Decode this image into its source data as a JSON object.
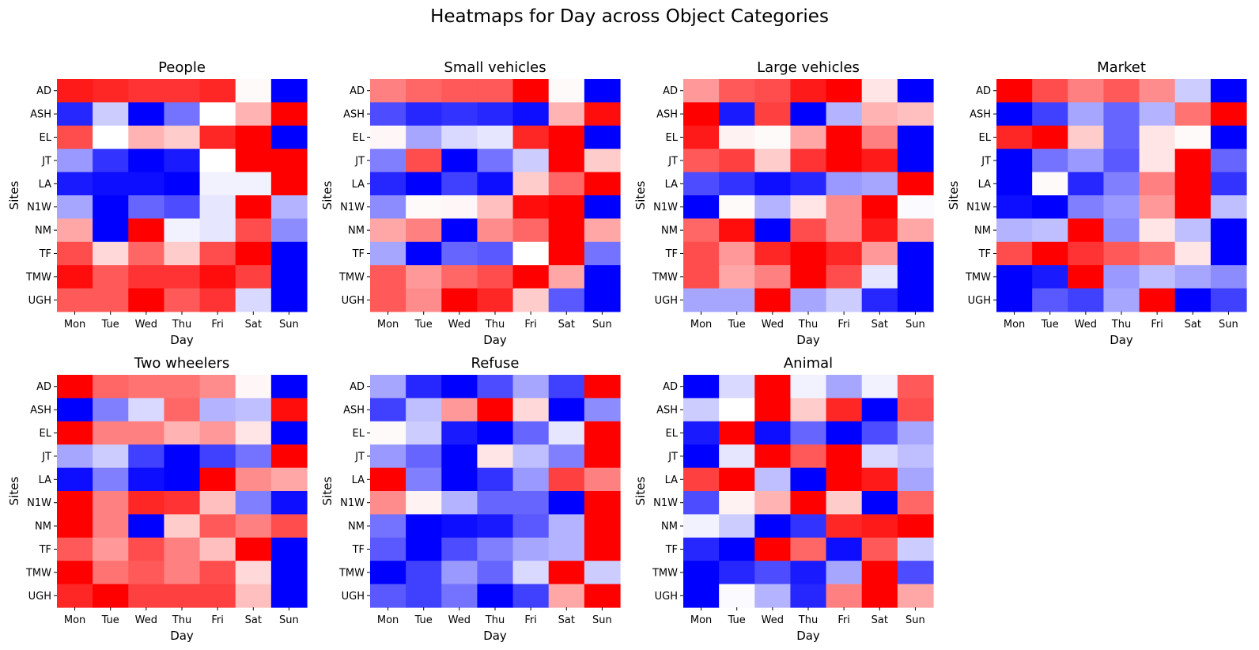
{
  "suptitle": "Heatmaps for Day across Object Categories",
  "chart_data": [
    {
      "type": "heatmap",
      "title": "People",
      "xlabel": "Day",
      "ylabel": "Sites",
      "x": [
        "Mon",
        "Tue",
        "Wed",
        "Thu",
        "Fri",
        "Sat",
        "Sun"
      ],
      "y": [
        "AD",
        "ASH",
        "EL",
        "JT",
        "LA",
        "N1W",
        "NM",
        "TF",
        "TMW",
        "UGH"
      ],
      "values": [
        [
          0.9,
          0.85,
          0.8,
          0.8,
          0.85,
          0.02,
          -1
        ],
        [
          -0.85,
          -0.2,
          -1,
          -0.55,
          0,
          0.3,
          1
        ],
        [
          0.7,
          0,
          0.3,
          0.2,
          0.85,
          1,
          -1
        ],
        [
          -0.4,
          -0.8,
          -1,
          -0.9,
          0,
          1,
          1
        ],
        [
          -0.9,
          -0.95,
          -0.95,
          -1,
          -0.05,
          -0.05,
          1
        ],
        [
          -0.35,
          -1,
          -0.6,
          -0.7,
          -0.1,
          1,
          -0.3
        ],
        [
          0.35,
          -1,
          1,
          -0.05,
          -0.1,
          0.7,
          -0.45
        ],
        [
          0.7,
          0.15,
          0.6,
          0.2,
          0.7,
          1,
          -1
        ],
        [
          0.95,
          0.65,
          0.8,
          0.8,
          0.95,
          0.75,
          -1
        ],
        [
          0.65,
          0.65,
          1,
          0.65,
          0.8,
          -0.15,
          -1
        ]
      ],
      "color_range": [
        -1,
        1
      ],
      "colors": {
        "low": "#0000ff",
        "mid": "#ffffff",
        "high": "#ff0000"
      }
    },
    {
      "type": "heatmap",
      "title": "Small vehicles",
      "xlabel": "Day",
      "ylabel": "Sites",
      "x": [
        "Mon",
        "Tue",
        "Wed",
        "Thu",
        "Fri",
        "Sat",
        "Sun"
      ],
      "y": [
        "AD",
        "ASH",
        "EL",
        "JT",
        "LA",
        "N1W",
        "NM",
        "TF",
        "TMW",
        "UGH"
      ],
      "values": [
        [
          0.5,
          0.6,
          0.65,
          0.65,
          1,
          0.02,
          -1
        ],
        [
          -0.7,
          -0.85,
          -0.8,
          -0.85,
          -0.95,
          0.3,
          0.95
        ],
        [
          0.03,
          -0.35,
          -0.15,
          -0.1,
          0.85,
          1,
          -1
        ],
        [
          -0.5,
          0.7,
          -1,
          -0.55,
          -0.2,
          1,
          0.2
        ],
        [
          -0.85,
          -1,
          -0.75,
          -0.95,
          0.2,
          0.6,
          1
        ],
        [
          -0.45,
          0.02,
          0.03,
          0.25,
          0.95,
          1,
          -1
        ],
        [
          0.35,
          0.5,
          -1,
          0.45,
          0.6,
          1,
          0.35
        ],
        [
          -0.35,
          -1,
          -0.6,
          -0.65,
          0,
          1,
          -0.55
        ],
        [
          0.65,
          0.4,
          0.6,
          0.7,
          1,
          0.35,
          -1
        ],
        [
          0.65,
          0.45,
          1,
          0.85,
          0.2,
          -0.65,
          -1
        ]
      ],
      "color_range": [
        -1,
        1
      ],
      "colors": {
        "low": "#0000ff",
        "mid": "#ffffff",
        "high": "#ff0000"
      }
    },
    {
      "type": "heatmap",
      "title": "Large vehicles",
      "xlabel": "Day",
      "ylabel": "Sites",
      "x": [
        "Mon",
        "Tue",
        "Wed",
        "Thu",
        "Fri",
        "Sat",
        "Sun"
      ],
      "y": [
        "AD",
        "ASH",
        "EL",
        "JT",
        "LA",
        "N1W",
        "NM",
        "TF",
        "TMW",
        "UGH"
      ],
      "values": [
        [
          0.4,
          0.65,
          0.7,
          0.9,
          1,
          0.1,
          -1
        ],
        [
          1,
          -0.9,
          0.75,
          -1,
          -0.3,
          0.3,
          0.25
        ],
        [
          0.9,
          0.05,
          0.02,
          0.35,
          1,
          0.5,
          -1
        ],
        [
          0.65,
          0.75,
          0.2,
          0.8,
          1,
          0.9,
          -1
        ],
        [
          -0.7,
          -0.8,
          -0.95,
          -0.85,
          -0.4,
          -0.35,
          1
        ],
        [
          -1,
          0.02,
          -0.3,
          0.1,
          0.45,
          1,
          -0.02
        ],
        [
          0.6,
          0.95,
          -1,
          0.7,
          0.45,
          0.9,
          0.35
        ],
        [
          0.7,
          0.4,
          0.85,
          1,
          0.85,
          0.4,
          -1
        ],
        [
          0.7,
          0.35,
          0.5,
          1,
          0.7,
          -0.1,
          -1
        ],
        [
          -0.35,
          -0.35,
          1,
          -0.35,
          -0.2,
          -0.85,
          -1
        ]
      ],
      "color_range": [
        -1,
        1
      ],
      "colors": {
        "low": "#0000ff",
        "mid": "#ffffff",
        "high": "#ff0000"
      }
    },
    {
      "type": "heatmap",
      "title": "Market",
      "xlabel": "Day",
      "ylabel": "Sites",
      "x": [
        "Mon",
        "Tue",
        "Wed",
        "Thu",
        "Fri",
        "Sat",
        "Sun"
      ],
      "y": [
        "AD",
        "ASH",
        "EL",
        "JT",
        "LA",
        "N1W",
        "NM",
        "TF",
        "TMW",
        "UGH"
      ],
      "values": [
        [
          1,
          0.7,
          0.5,
          0.65,
          0.45,
          -0.2,
          -1
        ],
        [
          -1,
          -0.75,
          -0.35,
          -0.6,
          -0.3,
          0.55,
          1
        ],
        [
          0.85,
          1,
          0.2,
          -0.6,
          0.1,
          0.02,
          -1
        ],
        [
          -1,
          -0.55,
          -0.4,
          -0.65,
          0.1,
          1,
          -0.6
        ],
        [
          -1,
          0.02,
          -0.85,
          -0.5,
          0.5,
          1,
          -0.8
        ],
        [
          -0.95,
          -1,
          -0.5,
          -0.4,
          0.4,
          1,
          -0.25
        ],
        [
          -0.3,
          -0.25,
          1,
          -0.45,
          0.1,
          -0.25,
          -1
        ],
        [
          0.7,
          1,
          0.8,
          0.65,
          0.55,
          0.1,
          -1
        ],
        [
          -1,
          -0.9,
          1,
          -0.4,
          -0.25,
          -0.35,
          -0.45
        ],
        [
          -1,
          -0.65,
          -0.75,
          -0.35,
          1,
          -1,
          -0.75
        ]
      ],
      "color_range": [
        -1,
        1
      ],
      "colors": {
        "low": "#0000ff",
        "mid": "#ffffff",
        "high": "#ff0000"
      }
    },
    {
      "type": "heatmap",
      "title": "Two wheelers",
      "xlabel": "Day",
      "ylabel": "Sites",
      "x": [
        "Mon",
        "Tue",
        "Wed",
        "Thu",
        "Fri",
        "Sat",
        "Sun"
      ],
      "y": [
        "AD",
        "ASH",
        "EL",
        "JT",
        "LA",
        "N1W",
        "NM",
        "TF",
        "TMW",
        "UGH"
      ],
      "values": [
        [
          1,
          0.6,
          0.55,
          0.55,
          0.45,
          0.03,
          -1
        ],
        [
          -1,
          -0.5,
          -0.15,
          0.6,
          -0.3,
          -0.25,
          0.95
        ],
        [
          1,
          0.5,
          0.5,
          0.3,
          0.4,
          0.1,
          -1
        ],
        [
          -0.35,
          -0.2,
          -0.75,
          -1,
          -0.75,
          -0.55,
          1
        ],
        [
          -0.95,
          -0.5,
          -0.95,
          -1,
          1,
          0.45,
          0.35
        ],
        [
          1,
          0.5,
          0.85,
          0.8,
          0.25,
          -0.5,
          -0.95
        ],
        [
          1,
          0.5,
          -1,
          0.2,
          0.65,
          0.5,
          0.7
        ],
        [
          0.65,
          0.4,
          0.7,
          0.5,
          0.25,
          1,
          -1
        ],
        [
          1,
          0.55,
          0.65,
          0.5,
          0.7,
          0.15,
          -1
        ],
        [
          0.85,
          1,
          0.75,
          0.75,
          0.75,
          0.25,
          -1
        ]
      ],
      "color_range": [
        -1,
        1
      ],
      "colors": {
        "low": "#0000ff",
        "mid": "#ffffff",
        "high": "#ff0000"
      }
    },
    {
      "type": "heatmap",
      "title": "Refuse",
      "xlabel": "Day",
      "ylabel": "Sites",
      "x": [
        "Mon",
        "Tue",
        "Wed",
        "Thu",
        "Fri",
        "Sat",
        "Sun"
      ],
      "y": [
        "AD",
        "ASH",
        "EL",
        "JT",
        "LA",
        "N1W",
        "NM",
        "TF",
        "TMW",
        "UGH"
      ],
      "values": [
        [
          -0.35,
          -0.85,
          -1,
          -0.7,
          -0.35,
          -0.75,
          1
        ],
        [
          -0.75,
          -0.25,
          0.4,
          1,
          0.15,
          -1,
          -0.45
        ],
        [
          0.02,
          -0.2,
          -0.9,
          -1,
          -0.6,
          -0.1,
          1
        ],
        [
          -0.4,
          -0.6,
          -1,
          0.1,
          -0.25,
          -0.5,
          1
        ],
        [
          1,
          -0.5,
          -1,
          -0.8,
          -0.4,
          0.75,
          0.5
        ],
        [
          0.45,
          0.05,
          -0.3,
          -0.6,
          -0.6,
          -1,
          1
        ],
        [
          -0.55,
          -1,
          -0.95,
          -0.9,
          -0.65,
          -0.3,
          1
        ],
        [
          -0.65,
          -1,
          -0.7,
          -0.5,
          -0.35,
          -0.3,
          1
        ],
        [
          -1,
          -0.75,
          -0.4,
          -0.6,
          -0.15,
          1,
          -0.2
        ],
        [
          -0.65,
          -0.75,
          -0.55,
          -1,
          -0.75,
          0.35,
          1
        ]
      ],
      "color_range": [
        -1,
        1
      ],
      "colors": {
        "low": "#0000ff",
        "mid": "#ffffff",
        "high": "#ff0000"
      }
    },
    {
      "type": "heatmap",
      "title": "Animal",
      "xlabel": "Day",
      "ylabel": "Sites",
      "x": [
        "Mon",
        "Tue",
        "Wed",
        "Thu",
        "Fri",
        "Sat",
        "Sun"
      ],
      "y": [
        "AD",
        "ASH",
        "EL",
        "JT",
        "LA",
        "N1W",
        "NM",
        "TF",
        "TMW",
        "UGH"
      ],
      "values": [
        [
          -1,
          -0.15,
          1,
          -0.05,
          -0.35,
          -0.05,
          0.65
        ],
        [
          -0.2,
          0,
          1,
          0.2,
          0.85,
          -1,
          0.7
        ],
        [
          -0.9,
          1,
          -0.95,
          -0.6,
          -1,
          -0.7,
          -0.35
        ],
        [
          -1,
          -0.1,
          1,
          0.65,
          1,
          -0.15,
          -0.25
        ],
        [
          0.75,
          1,
          -0.25,
          -1,
          1,
          0.9,
          -0.35
        ],
        [
          -0.7,
          0.05,
          0.3,
          1,
          0.2,
          -1,
          0.6
        ],
        [
          -0.05,
          -0.2,
          -1,
          -0.8,
          0.85,
          0.9,
          1
        ],
        [
          -0.85,
          -1,
          1,
          0.6,
          -0.95,
          0.65,
          -0.2
        ],
        [
          -1,
          -0.85,
          -0.7,
          -0.9,
          -0.35,
          1,
          -0.7
        ],
        [
          -1,
          -0.02,
          -0.3,
          -0.85,
          0.5,
          1,
          0.35
        ]
      ],
      "color_range": [
        -1,
        1
      ],
      "colors": {
        "low": "#0000ff",
        "mid": "#ffffff",
        "high": "#ff0000"
      }
    }
  ]
}
